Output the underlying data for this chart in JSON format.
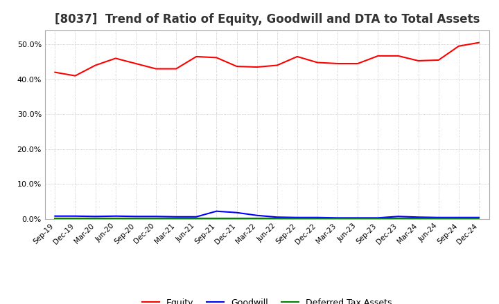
{
  "title": "[8037]  Trend of Ratio of Equity, Goodwill and DTA to Total Assets",
  "x_labels": [
    "Sep-19",
    "Dec-19",
    "Mar-20",
    "Jun-20",
    "Sep-20",
    "Dec-20",
    "Mar-21",
    "Jun-21",
    "Sep-21",
    "Dec-21",
    "Mar-22",
    "Jun-22",
    "Sep-22",
    "Dec-22",
    "Mar-23",
    "Jun-23",
    "Sep-23",
    "Dec-23",
    "Mar-24",
    "Jun-24",
    "Sep-24",
    "Dec-24"
  ],
  "equity": [
    0.42,
    0.41,
    0.44,
    0.46,
    0.445,
    0.43,
    0.43,
    0.465,
    0.462,
    0.437,
    0.435,
    0.44,
    0.465,
    0.448,
    0.445,
    0.445,
    0.467,
    0.467,
    0.453,
    0.455,
    0.495,
    0.505
  ],
  "goodwill": [
    0.008,
    0.008,
    0.007,
    0.008,
    0.007,
    0.007,
    0.006,
    0.006,
    0.022,
    0.018,
    0.01,
    0.005,
    0.004,
    0.004,
    0.003,
    0.003,
    0.003,
    0.007,
    0.005,
    0.004,
    0.004,
    0.004
  ],
  "dta": [
    0.001,
    0.001,
    0.001,
    0.001,
    0.001,
    0.001,
    0.001,
    0.001,
    0.001,
    0.001,
    0.001,
    0.001,
    0.001,
    0.001,
    0.001,
    0.001,
    0.001,
    0.001,
    0.001,
    0.001,
    0.001,
    0.001
  ],
  "equity_color": "#FF0000",
  "goodwill_color": "#0000FF",
  "dta_color": "#008000",
  "background_color": "#FFFFFF",
  "plot_bg_color": "#FFFFFF",
  "grid_color": "#AAAAAA",
  "ylim": [
    0.0,
    0.54
  ],
  "yticks": [
    0.0,
    0.1,
    0.2,
    0.3,
    0.4,
    0.5
  ],
  "legend_labels": [
    "Equity",
    "Goodwill",
    "Deferred Tax Assets"
  ],
  "linewidth": 1.5,
  "title_fontsize": 12,
  "title_color": "#333333"
}
